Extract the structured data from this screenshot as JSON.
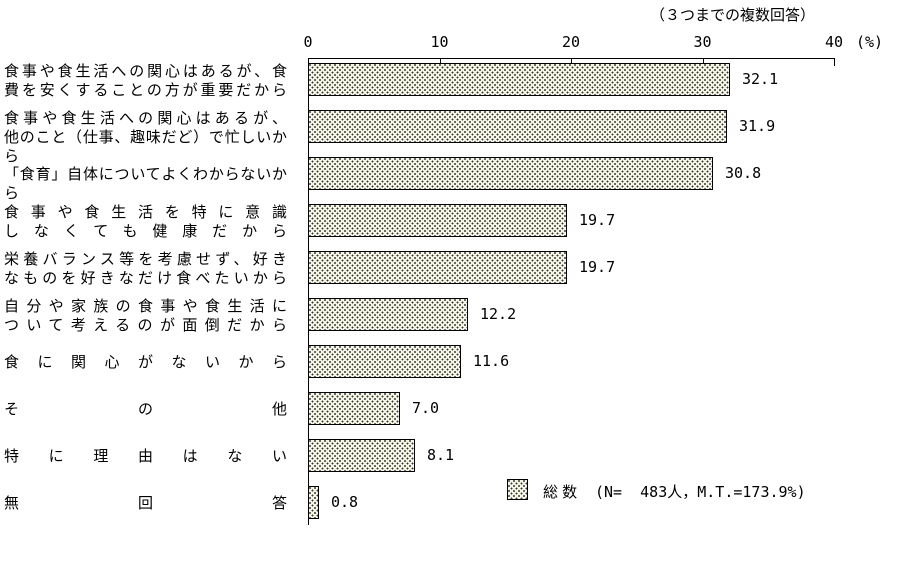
{
  "note_top_right": "（３つまでの複数回答）",
  "chart_data": {
    "type": "bar",
    "orientation": "horizontal",
    "title": "（３つまでの複数回答）",
    "categories": [
      "食事や食生活への関心はあるが、食費を安くすることの方が重要だから",
      "食事や食生活への関心はあるが、他のこと（仕事、趣味だど）で忙しいから",
      "「食育」自体についてよくわからないから",
      "食事や食生活を特に意識しなくても健康だから",
      "栄養バランス等を考慮せず、好きなものを好きなだけ食べたいから",
      "自分や家族の食事や食生活について考えるのが面倒だから",
      "食に関心がないから",
      "その他",
      "特に理由はない",
      "無回答"
    ],
    "category_lines": [
      [
        "食事や食生活への関心はあるが、食",
        "費を安くすることの方が重要だから"
      ],
      [
        "食事や食生活への関心はあるが、",
        "他のこと（仕事、趣味だど）で忙しいから"
      ],
      [
        "「食育」自体についてよくわからないから"
      ],
      [
        "食事や食生活を特に意識",
        "しなくても健康だから"
      ],
      [
        "栄養バランス等を考慮せず、好き",
        "なものを好きなだけ食べたいから"
      ],
      [
        "自分や家族の食事や食生活に",
        "ついて考えるのが面倒だから"
      ],
      [
        "食に関心がないから"
      ],
      [
        "その他"
      ],
      [
        "特に理由はない"
      ],
      [
        "無回答"
      ]
    ],
    "values": [
      32.1,
      31.9,
      30.8,
      19.7,
      19.7,
      12.2,
      11.6,
      7.0,
      8.1,
      0.8
    ],
    "xlabel": "(%)",
    "xlim": [
      0,
      40
    ],
    "xticks": [
      0,
      10,
      20,
      30,
      40
    ],
    "grid": false,
    "legend_position": "bottom-right",
    "legend": {
      "label": "総 数",
      "note": "(N=  483人，M.T.=173.9%)"
    },
    "colors": {
      "bar_fill": "#f6f6e8",
      "bar_dot": "#3c3c32",
      "bar_border": "#000000",
      "text": "#000000",
      "background": "#ffffff"
    }
  }
}
